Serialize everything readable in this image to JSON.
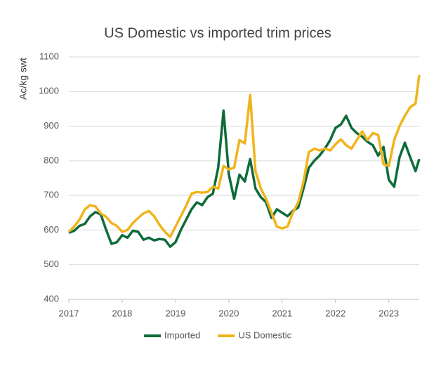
{
  "chart_data": {
    "type": "line",
    "title": "US Domestic vs imported trim prices",
    "y_label": "Ac/kg swt",
    "x": [
      2017.0,
      2017.1,
      2017.2,
      2017.3,
      2017.4,
      2017.5,
      2017.6,
      2017.7,
      2017.8,
      2017.9,
      2018.0,
      2018.1,
      2018.2,
      2018.3,
      2018.4,
      2018.5,
      2018.6,
      2018.7,
      2018.8,
      2018.9,
      2019.0,
      2019.1,
      2019.2,
      2019.3,
      2019.4,
      2019.5,
      2019.6,
      2019.7,
      2019.8,
      2019.9,
      2020.0,
      2020.1,
      2020.2,
      2020.3,
      2020.4,
      2020.5,
      2020.6,
      2020.7,
      2020.8,
      2020.9,
      2021.0,
      2021.1,
      2021.2,
      2021.3,
      2021.4,
      2021.5,
      2021.6,
      2021.7,
      2021.8,
      2021.9,
      2022.0,
      2022.1,
      2022.2,
      2022.3,
      2022.4,
      2022.5,
      2022.6,
      2022.7,
      2022.8,
      2022.9,
      2023.0,
      2023.1,
      2023.2,
      2023.3,
      2023.4,
      2023.5,
      2023.57
    ],
    "series": [
      {
        "name": "Imported",
        "color": "#0e6b3a",
        "values": [
          592,
          598,
          612,
          618,
          640,
          652,
          645,
          600,
          560,
          565,
          585,
          578,
          598,
          595,
          572,
          578,
          570,
          574,
          572,
          552,
          565,
          600,
          630,
          660,
          680,
          672,
          695,
          705,
          780,
          945,
          760,
          690,
          760,
          740,
          805,
          720,
          695,
          680,
          635,
          660,
          650,
          640,
          655,
          665,
          720,
          780,
          800,
          815,
          835,
          860,
          895,
          905,
          930,
          895,
          880,
          870,
          855,
          845,
          815,
          840,
          745,
          725,
          810,
          852,
          810,
          770,
          805
        ]
      },
      {
        "name": "US Domestic",
        "color": "#f0b41c",
        "values": [
          595,
          610,
          630,
          660,
          672,
          668,
          648,
          638,
          620,
          612,
          595,
          600,
          620,
          635,
          648,
          655,
          640,
          615,
          595,
          580,
          610,
          640,
          670,
          705,
          710,
          708,
          710,
          725,
          720,
          785,
          775,
          780,
          860,
          850,
          990,
          770,
          720,
          690,
          650,
          610,
          605,
          610,
          650,
          680,
          740,
          825,
          835,
          830,
          835,
          830,
          848,
          862,
          845,
          835,
          860,
          885,
          860,
          880,
          875,
          790,
          785,
          860,
          900,
          930,
          955,
          965,
          1048
        ]
      }
    ],
    "xlim": [
      2017,
      2023.57
    ],
    "xticks": [
      2017,
      2018,
      2019,
      2020,
      2021,
      2022,
      2023
    ],
    "ylim": [
      400,
      1100
    ],
    "yticks": [
      400,
      500,
      600,
      700,
      800,
      900,
      1000,
      1100
    ],
    "grid": true,
    "legend": "bottom"
  }
}
